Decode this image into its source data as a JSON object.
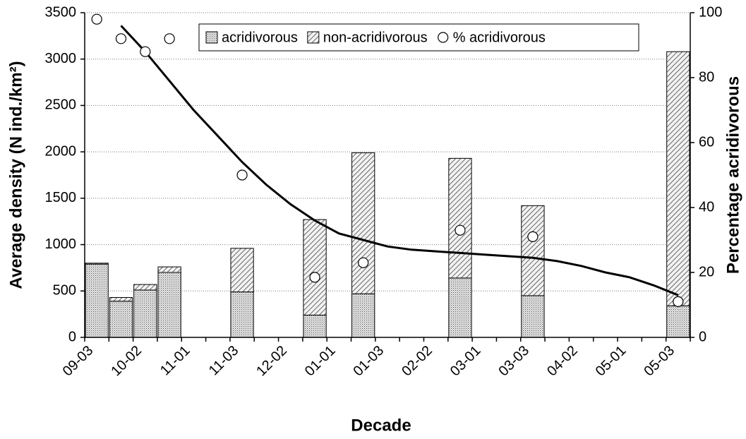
{
  "chart_data": {
    "type": "bar",
    "stacked": true,
    "xlabel": "Decade",
    "ylabel": "Average density (N ind./km²)",
    "y2label": "Percentage acridivorous",
    "categories": [
      "09-03",
      null,
      "10-02",
      null,
      "11-01",
      null,
      "11-03",
      null,
      "12-02",
      null,
      "01-01",
      null,
      "01-03",
      null,
      "02-02",
      null,
      "03-01",
      null,
      "03-03",
      null,
      "04-02",
      null,
      "05-01",
      null,
      "05-03"
    ],
    "series": [
      {
        "name": "acridivorous",
        "pattern": "dots",
        "values": [
          790,
          390,
          510,
          700,
          null,
          null,
          490,
          null,
          null,
          240,
          null,
          470,
          null,
          null,
          null,
          640,
          null,
          null,
          450,
          null,
          null,
          null,
          null,
          null,
          340
        ]
      },
      {
        "name": "non-acridivorous",
        "pattern": "hatch",
        "values": [
          10,
          40,
          60,
          60,
          null,
          null,
          470,
          null,
          null,
          1030,
          null,
          1520,
          null,
          null,
          null,
          1290,
          null,
          null,
          970,
          null,
          null,
          null,
          null,
          null,
          2740
        ]
      },
      {
        "name": "% acridivorous",
        "type": "scatter",
        "axis": "y2",
        "color": "#ffffff",
        "values": [
          98,
          92,
          88,
          92,
          null,
          null,
          50,
          null,
          null,
          18.5,
          null,
          23,
          null,
          null,
          null,
          33,
          null,
          null,
          31,
          null,
          null,
          null,
          null,
          null,
          11
        ]
      }
    ],
    "trendline": {
      "axis": "y2",
      "color": "#000000",
      "values": [
        null,
        96,
        88,
        79,
        70,
        62,
        54,
        47,
        41,
        36,
        32,
        30,
        28,
        27,
        26.5,
        26,
        25.5,
        25,
        24.5,
        23.5,
        22,
        20,
        18.5,
        16,
        13
      ]
    },
    "ylim": [
      0,
      3500
    ],
    "yticks": [
      0,
      500,
      1000,
      1500,
      2000,
      2500,
      3000,
      3500
    ],
    "y2lim": [
      0,
      100
    ],
    "y2ticks": [
      0,
      20,
      40,
      60,
      80,
      100
    ],
    "grid": true,
    "legend": "top"
  }
}
